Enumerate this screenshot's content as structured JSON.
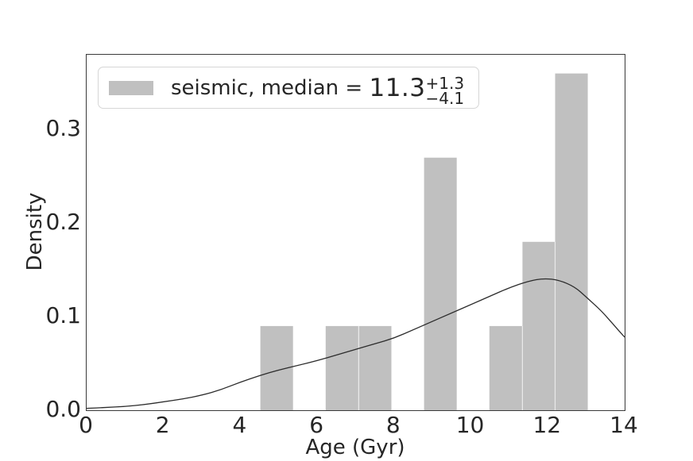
{
  "chart_data": {
    "type": "histogram+kde",
    "title": "",
    "xlabel": "Age (Gyr)",
    "ylabel": "Density",
    "xlim": [
      0,
      14
    ],
    "ylim": [
      0,
      0.38
    ],
    "grid": false,
    "xticks": {
      "values": [
        0,
        2,
        4,
        6,
        8,
        10,
        12,
        14
      ],
      "labels": [
        "0",
        "2",
        "4",
        "6",
        "8",
        "10",
        "12",
        "14"
      ]
    },
    "yticks": {
      "values": [
        0,
        0.1,
        0.2,
        0.3
      ],
      "labels": [
        "0.0",
        "0.1",
        "0.2",
        "0.3"
      ]
    },
    "legend": {
      "position": "upper-left",
      "swatch_color": "#c0c0c0",
      "label_prefix": "seismic, median = ",
      "median_value": "11.3",
      "upper_error": "+1.3",
      "lower_error": "−4.1"
    },
    "histogram": {
      "fill_color": "#c0c0c0",
      "seam_color": "rgba(255,255,255,0.65)",
      "bin_edges": [
        4.52,
        5.37,
        6.22,
        7.08,
        7.93,
        8.78,
        9.63,
        10.48,
        11.34,
        12.19,
        13.04
      ],
      "densities": [
        0.09,
        0,
        0.09,
        0.09,
        0,
        0.27,
        0,
        0.09,
        0.18,
        0.36
      ]
    },
    "kde": {
      "line_color": "#2b2b2b",
      "line_width": 1.3,
      "points": [
        [
          0,
          0.002
        ],
        [
          0.5,
          0.003
        ],
        [
          1,
          0.004
        ],
        [
          1.5,
          0.006
        ],
        [
          2,
          0.009
        ],
        [
          2.5,
          0.012
        ],
        [
          3,
          0.016
        ],
        [
          3.5,
          0.022
        ],
        [
          4,
          0.03
        ],
        [
          4.5,
          0.037
        ],
        [
          5,
          0.043
        ],
        [
          5.5,
          0.048
        ],
        [
          6,
          0.053
        ],
        [
          6.5,
          0.059
        ],
        [
          7,
          0.065
        ],
        [
          7.5,
          0.071
        ],
        [
          8,
          0.077
        ],
        [
          8.5,
          0.086
        ],
        [
          9,
          0.095
        ],
        [
          9.5,
          0.104
        ],
        [
          10,
          0.113
        ],
        [
          10.5,
          0.122
        ],
        [
          11,
          0.131
        ],
        [
          11.5,
          0.138
        ],
        [
          11.9,
          0.141
        ],
        [
          12.3,
          0.139
        ],
        [
          12.7,
          0.132
        ],
        [
          13,
          0.121
        ],
        [
          13.4,
          0.106
        ],
        [
          13.7,
          0.092
        ],
        [
          14,
          0.078
        ]
      ]
    }
  }
}
